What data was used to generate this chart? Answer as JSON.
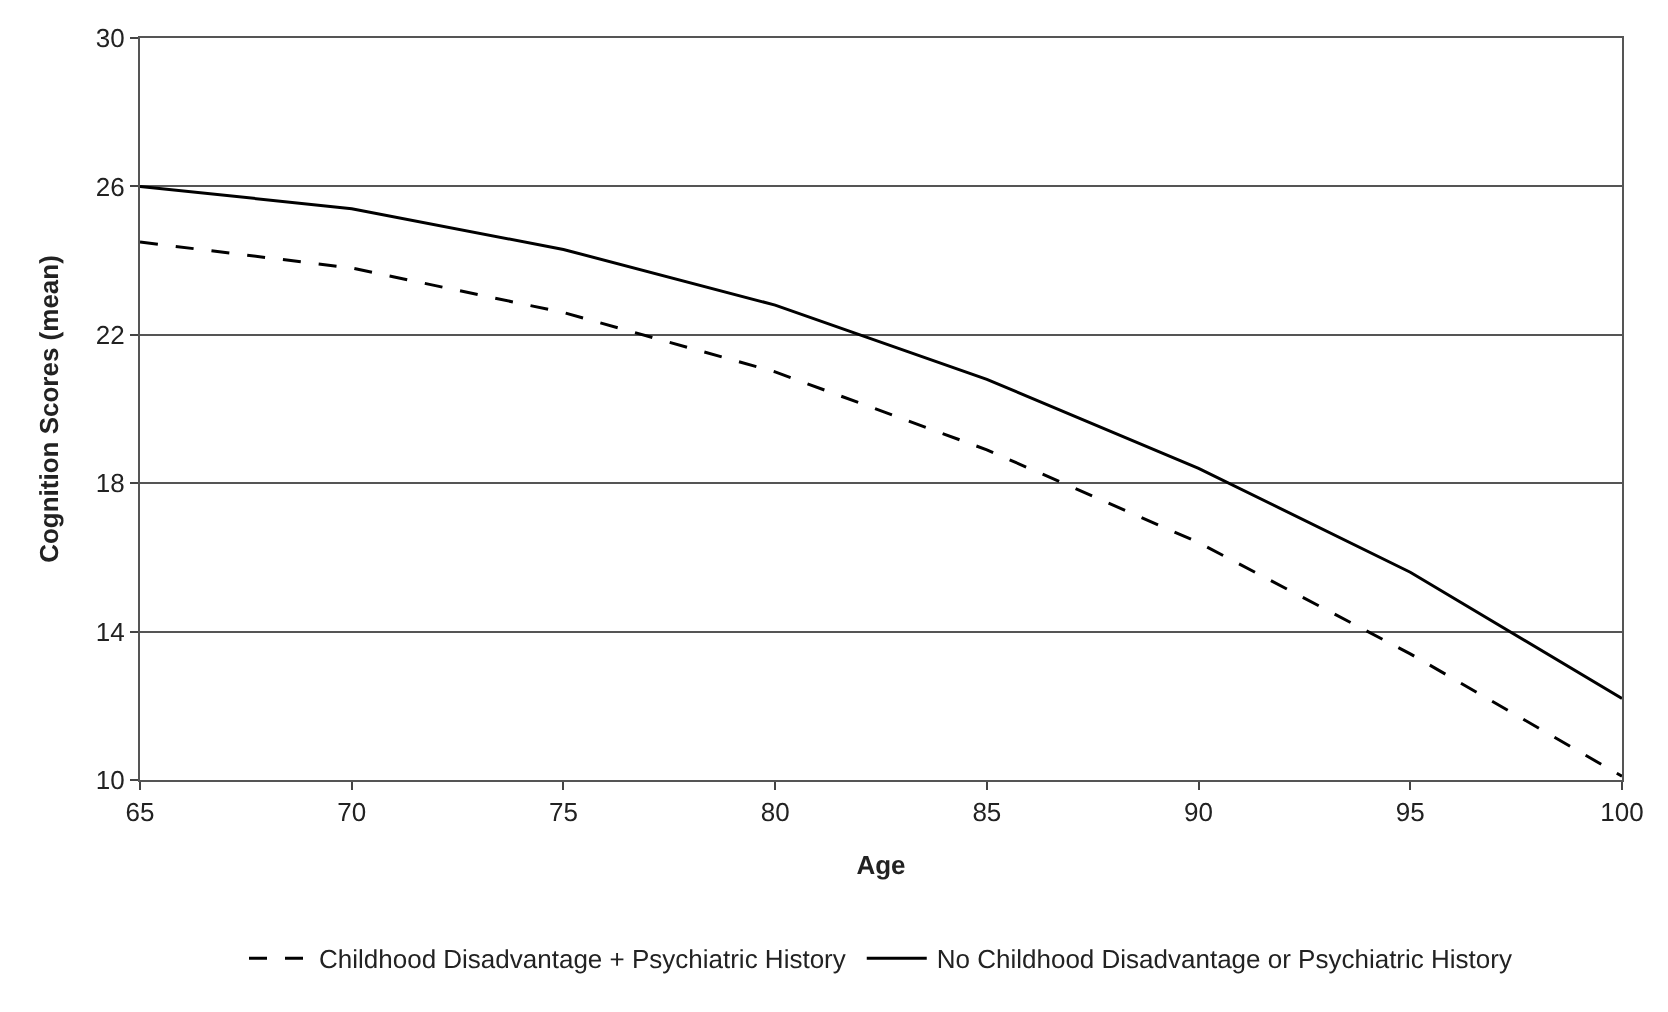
{
  "chart_data": {
    "type": "line",
    "xlabel": "Age",
    "ylabel": "Cognition Scores (mean)",
    "x": [
      65,
      70,
      75,
      80,
      85,
      90,
      95,
      100
    ],
    "series": [
      {
        "name": "Childhood Disadvantage + Psychiatric History",
        "color": "#000000",
        "line_style": "dashed",
        "values": [
          24.5,
          23.8,
          22.6,
          21.0,
          18.9,
          16.4,
          13.4,
          10.1
        ]
      },
      {
        "name": "No Childhood Disadvantage or Psychiatric History",
        "color": "#000000",
        "line_style": "solid",
        "values": [
          26.0,
          25.4,
          24.3,
          22.8,
          20.8,
          18.4,
          15.6,
          12.2
        ]
      }
    ],
    "xlim": [
      65,
      100
    ],
    "xticks": [
      65,
      70,
      75,
      80,
      85,
      90,
      95,
      100
    ],
    "ylim": [
      10,
      30
    ],
    "yticks": [
      10,
      14,
      18,
      22,
      26,
      30
    ],
    "grid": "y",
    "legend": "bottom",
    "marker": "none"
  }
}
